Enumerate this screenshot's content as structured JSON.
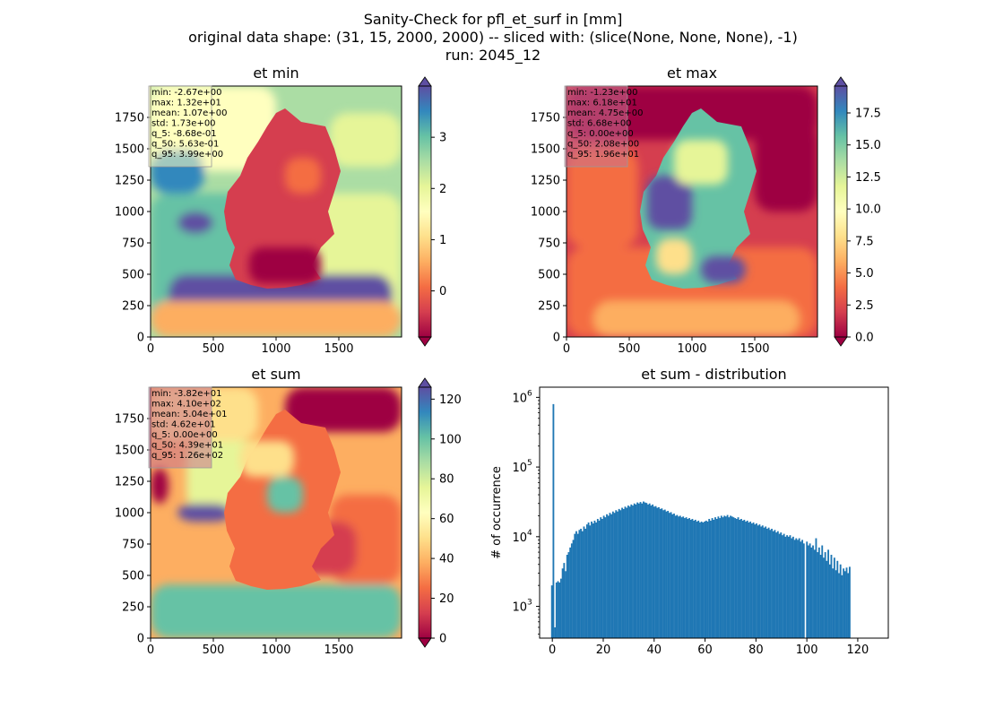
{
  "figure": {
    "title_lines": [
      "Sanity-Check for pfl_et_surf in [mm]",
      "original data shape: (31, 15, 2000, 2000) -- sliced with: (slice(None, None, None), -1)",
      "run: 2045_12"
    ]
  },
  "colors": {
    "spectral": [
      "#9e0142",
      "#d53e4f",
      "#f46d43",
      "#fdae61",
      "#fee08b",
      "#ffffbf",
      "#e6f598",
      "#abdda4",
      "#66c2a5",
      "#3288bd",
      "#5e4fa2"
    ],
    "histogram_bar": "#1f77b4",
    "stats_box_default": "#ffffbf",
    "stats_box_dark": "#c8738f"
  },
  "chart_data": [
    {
      "type": "heatmap",
      "title": "et min",
      "xticks": [
        "0",
        "500",
        "1000",
        "1500"
      ],
      "yticks": [
        "0",
        "250",
        "500",
        "750",
        "1000",
        "1250",
        "1500",
        "1750"
      ],
      "xlim": [
        0,
        2000
      ],
      "ylim": [
        0,
        2000
      ],
      "colorbar": {
        "vmin": -0.9,
        "vmax": 4.0,
        "ticks": [
          "0",
          "1",
          "2",
          "3"
        ],
        "tick_values": [
          0,
          1,
          2,
          3
        ],
        "extend": "both"
      },
      "stats": [
        "min: -2.67e+00",
        "max: 1.32e+01",
        "mean: 1.07e+00",
        "std: 1.73e+00",
        "q_5: -8.68e-01",
        "q_50: 5.63e-01",
        "q_95: 3.99e+00"
      ]
    },
    {
      "type": "heatmap",
      "title": "et max",
      "xticks": [
        "0",
        "500",
        "1000",
        "1500"
      ],
      "yticks": [
        "0",
        "250",
        "500",
        "750",
        "1000",
        "1250",
        "1500",
        "1750"
      ],
      "xlim": [
        0,
        2000
      ],
      "ylim": [
        0,
        2000
      ],
      "colorbar": {
        "vmin": 0,
        "vmax": 19.6,
        "ticks": [
          "0.0",
          "2.5",
          "5.0",
          "7.5",
          "10.0",
          "12.5",
          "15.0",
          "17.5"
        ],
        "tick_values": [
          0,
          2.5,
          5,
          7.5,
          10,
          12.5,
          15,
          17.5
        ],
        "extend": "both"
      },
      "stats": [
        "min: -1.23e+00",
        "max: 6.18e+01",
        "mean: 4.75e+00",
        "std: 6.68e+00",
        "q_5: 0.00e+00",
        "q_50: 2.08e+00",
        "q_95: 1.96e+01"
      ]
    },
    {
      "type": "heatmap",
      "title": "et sum",
      "xticks": [
        "0",
        "500",
        "1000",
        "1500"
      ],
      "yticks": [
        "0",
        "250",
        "500",
        "750",
        "1000",
        "1250",
        "1500",
        "1750"
      ],
      "xlim": [
        0,
        2000
      ],
      "ylim": [
        0,
        2000
      ],
      "colorbar": {
        "vmin": 0,
        "vmax": 126,
        "ticks": [
          "0",
          "20",
          "40",
          "60",
          "80",
          "100",
          "120"
        ],
        "tick_values": [
          0,
          20,
          40,
          60,
          80,
          100,
          120
        ],
        "extend": "both"
      },
      "stats": [
        "min: -3.82e+01",
        "max: 4.10e+02",
        "mean: 5.04e+01",
        "std: 4.62e+01",
        "q_5: 0.00e+00",
        "q_50: 4.39e+01",
        "q_95: 1.26e+02"
      ]
    },
    {
      "type": "bar",
      "title": "et sum - distribution",
      "ylabel": "# of occurrence",
      "yscale": "log",
      "xlim": [
        -5,
        132
      ],
      "ylim": [
        350,
        1400000
      ],
      "xticks": [
        0,
        20,
        40,
        60,
        80,
        100,
        120
      ],
      "xtick_labels": [
        "0",
        "20",
        "40",
        "60",
        "80",
        "100",
        "120"
      ],
      "yticks": [
        1000,
        10000,
        100000,
        1000000
      ],
      "ytick_labels": [
        "10",
        "10",
        "10",
        "10"
      ],
      "ytick_exponents": [
        "3",
        "4",
        "5",
        "6"
      ],
      "bins": {
        "start": -0.5,
        "width": 0.6
      },
      "values": [
        2000,
        800000,
        500,
        2200,
        2300,
        2200,
        2500,
        3500,
        4200,
        3200,
        5500,
        6000,
        7000,
        8000,
        9000,
        11000,
        12000,
        11000,
        12500,
        13000,
        12000,
        14000,
        13000,
        15000,
        16000,
        14500,
        16500,
        15500,
        17000,
        16000,
        18000,
        17000,
        19000,
        18000,
        20000,
        19000,
        21000,
        20000,
        22000,
        21000,
        23000,
        22000,
        24000,
        23000,
        25000,
        24000,
        26000,
        25000,
        27000,
        26000,
        28000,
        27000,
        29000,
        28000,
        30000,
        29000,
        31000,
        30000,
        31500,
        30000,
        32000,
        31000,
        30500,
        29000,
        30000,
        28000,
        29000,
        27000,
        27500,
        26000,
        26500,
        25000,
        25500,
        24000,
        24500,
        23000,
        23500,
        22000,
        22500,
        21000,
        21500,
        20000,
        20500,
        19500,
        20000,
        19000,
        19500,
        18500,
        19000,
        18000,
        18500,
        17500,
        18000,
        17000,
        17500,
        16500,
        17000,
        16000,
        16500,
        16000,
        16500,
        17000,
        16500,
        18000,
        17000,
        18500,
        17500,
        19000,
        18000,
        19500,
        18500,
        20000,
        19000,
        20000,
        19500,
        20500,
        19000,
        20000,
        19500,
        19000,
        18500,
        18000,
        19000,
        17500,
        18000,
        17000,
        17500,
        16500,
        17000,
        16000,
        16500,
        15500,
        16000,
        15000,
        15500,
        14500,
        15000,
        14000,
        14500,
        13500,
        14000,
        13000,
        13500,
        12500,
        13000,
        12000,
        12500,
        11500,
        12000,
        11000,
        11500,
        10500,
        11000,
        10000,
        10500,
        10000,
        10500,
        9500,
        10000,
        9000,
        9500,
        9000,
        9500,
        8500,
        9000,
        8000,
        300,
        8500,
        7500,
        8000,
        7000,
        7500,
        6500,
        9500,
        6000,
        7000,
        5500,
        7500,
        5000,
        6000,
        4500,
        6500,
        4000,
        5500,
        3500,
        5000,
        3300,
        4500,
        3000,
        4000,
        2800,
        3500,
        3200,
        3600,
        3000,
        3700
      ]
    }
  ]
}
